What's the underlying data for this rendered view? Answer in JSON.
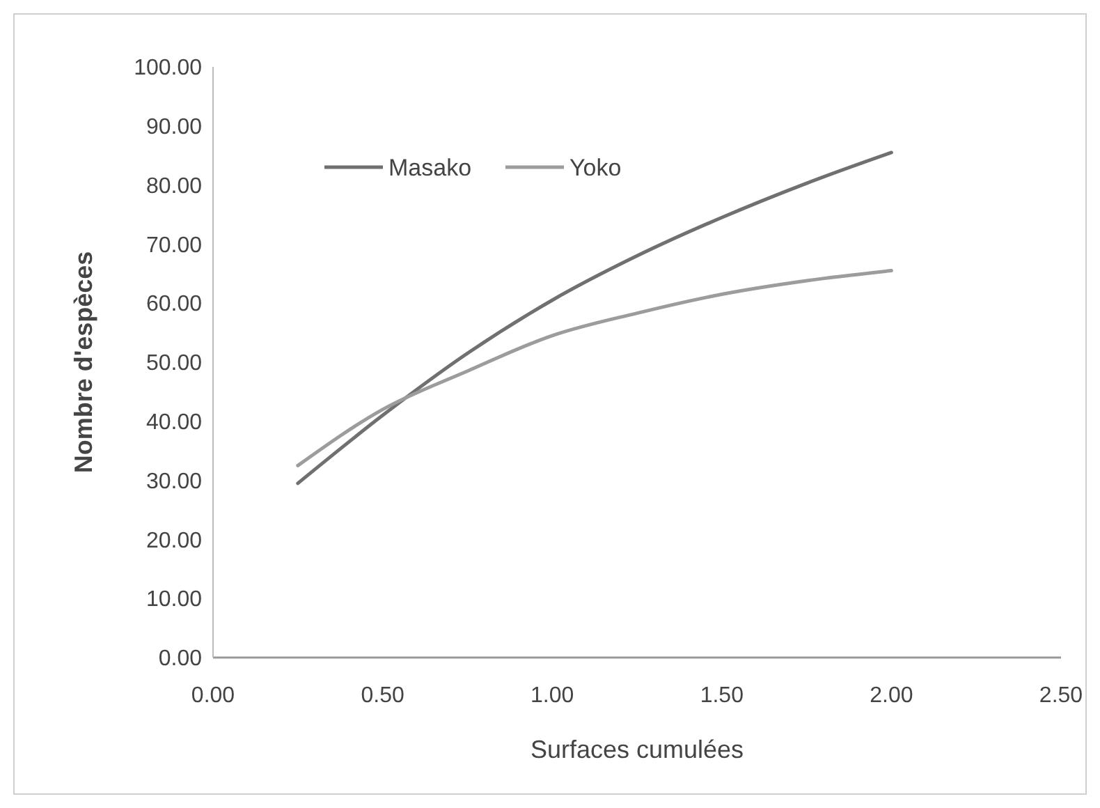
{
  "chart_data": {
    "type": "line",
    "xlabel": "Surfaces cumulées",
    "ylabel": "Nombre d'espèces",
    "x": [
      0.25,
      0.5,
      0.75,
      1.0,
      1.25,
      1.5,
      1.75,
      2.0
    ],
    "series": [
      {
        "name": "Masako",
        "color": "#707070",
        "values": [
          29.5,
          41,
          51.5,
          60.5,
          68,
          74.5,
          80.3,
          85.5
        ]
      },
      {
        "name": "Yoko",
        "color": "#9c9c9c",
        "values": [
          32.5,
          42,
          48.5,
          54.5,
          58.3,
          61.5,
          63.8,
          65.5
        ]
      }
    ],
    "xlim": [
      0,
      2.5
    ],
    "xticks": [
      {
        "value": 0,
        "label": "0.00"
      },
      {
        "value": 0.5,
        "label": "0.50"
      },
      {
        "value": 1,
        "label": "1.00"
      },
      {
        "value": 1.5,
        "label": "1.50"
      },
      {
        "value": 2,
        "label": "2.00"
      },
      {
        "value": 2.5,
        "label": "2.50"
      }
    ],
    "ylim": [
      0,
      100
    ],
    "yticks": [
      {
        "value": 0,
        "label": "0.00"
      },
      {
        "value": 10,
        "label": "10.00"
      },
      {
        "value": 20,
        "label": "20.00"
      },
      {
        "value": 30,
        "label": "30.00"
      },
      {
        "value": 40,
        "label": "40.00"
      },
      {
        "value": 50,
        "label": "50.00"
      },
      {
        "value": 60,
        "label": "60.00"
      },
      {
        "value": 70,
        "label": "70.00"
      },
      {
        "value": 80,
        "label": "80.00"
      },
      {
        "value": 90,
        "label": "90.00"
      },
      {
        "value": 100,
        "label": "100.00"
      }
    ],
    "grid": false,
    "legend": "top left",
    "marker": "none",
    "line_style": "solid"
  }
}
